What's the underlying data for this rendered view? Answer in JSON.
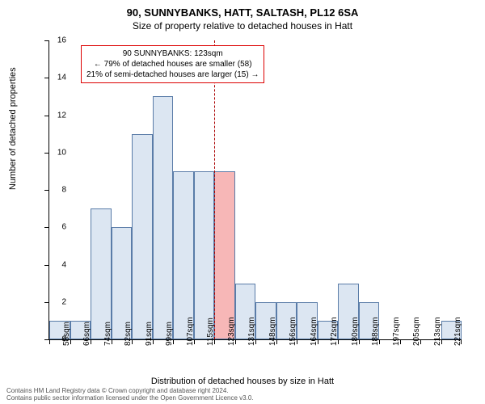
{
  "title_main": "90, SUNNYBANKS, HATT, SALTASH, PL12 6SA",
  "title_sub": "Size of property relative to detached houses in Hatt",
  "y_axis_title": "Number of detached properties",
  "x_axis_title": "Distribution of detached houses by size in Hatt",
  "footer_line1": "Contains HM Land Registry data © Crown copyright and database right 2024.",
  "footer_line2": "Contains public sector information licensed under the Open Government Licence v3.0.",
  "chart": {
    "type": "histogram",
    "bar_fill": "#dce6f2",
    "bar_stroke": "#5a7ca8",
    "highlight_fill": "#f7b7b7",
    "ref_line_color": "#aa0000",
    "ref_value_index": 8,
    "ylim": [
      0,
      16
    ],
    "ytick_step": 2,
    "categories": [
      "58sqm",
      "66sqm",
      "74sqm",
      "82sqm",
      "91sqm",
      "99sqm",
      "107sqm",
      "115sqm",
      "123sqm",
      "131sqm",
      "148sqm",
      "156sqm",
      "164sqm",
      "172sqm",
      "180sqm",
      "188sqm",
      "197sqm",
      "205sqm",
      "213sqm",
      "221sqm"
    ],
    "values": [
      1,
      1,
      7,
      6,
      11,
      13,
      9,
      9,
      9,
      3,
      2,
      2,
      2,
      1,
      3,
      2,
      0,
      0,
      0,
      1
    ],
    "highlighted": [
      false,
      false,
      false,
      false,
      false,
      false,
      false,
      false,
      true,
      false,
      false,
      false,
      false,
      false,
      false,
      false,
      false,
      false,
      false,
      false
    ]
  },
  "annotation": {
    "line1": "90 SUNNYBANKS: 123sqm",
    "line2": "← 79% of detached houses are smaller (58)",
    "line3": "21% of semi-detached houses are larger (15) →"
  }
}
